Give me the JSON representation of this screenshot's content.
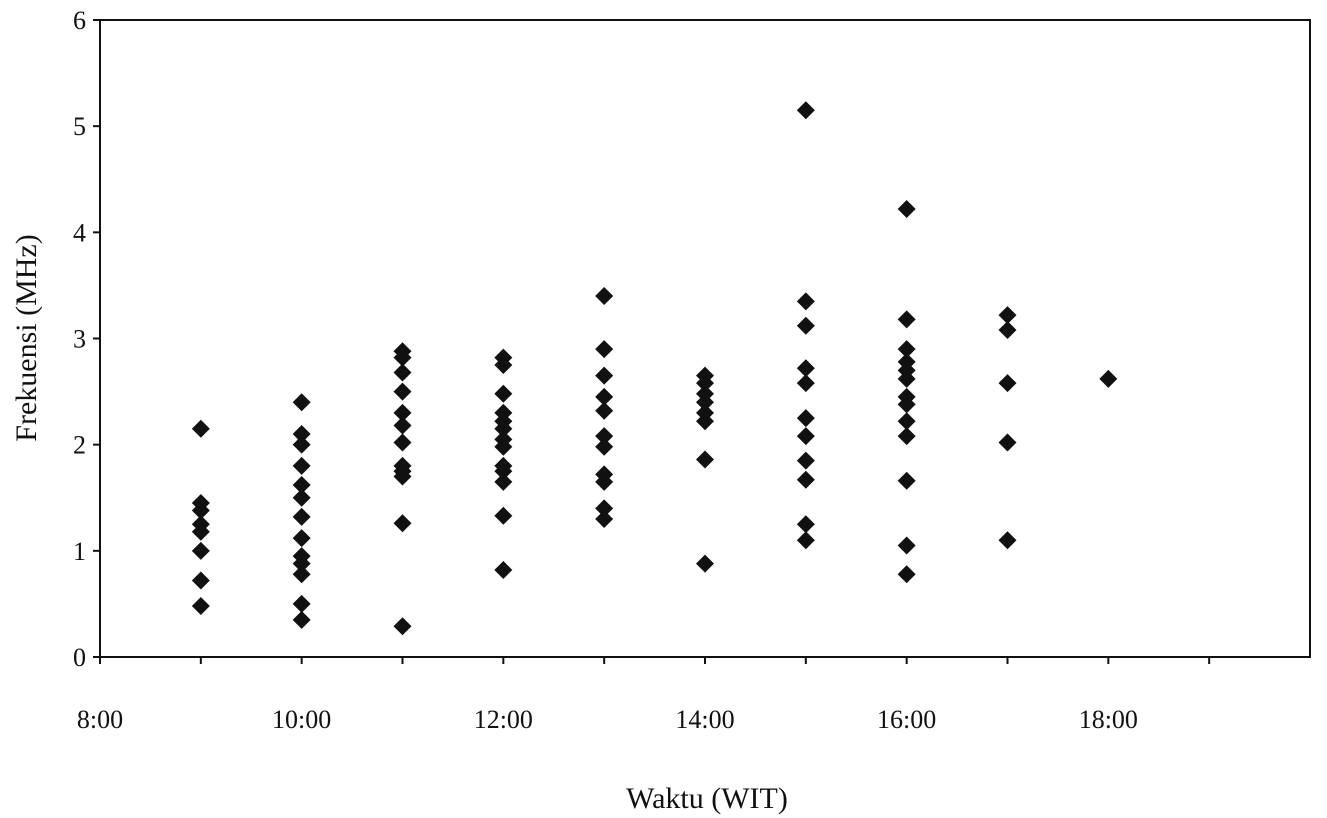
{
  "chart_data": {
    "type": "scatter",
    "title": "",
    "xlabel": "Waktu (WIT)",
    "ylabel": "Frekuensi (MHz)",
    "xlim": [
      "8:00",
      "20:00"
    ],
    "ylim": [
      0,
      6
    ],
    "x_ticks": [
      "8:00",
      "10:00",
      "12:00",
      "14:00",
      "16:00",
      "18:00"
    ],
    "y_ticks": [
      "0",
      "1",
      "2",
      "3",
      "4",
      "5",
      "6"
    ],
    "grid": false,
    "legend": "none",
    "marker": "diamond",
    "marker_color": "#111111",
    "series": [
      {
        "points": [
          [
            "9:00",
            2.15
          ],
          [
            "9:00",
            1.45
          ],
          [
            "9:00",
            1.38
          ],
          [
            "9:00",
            1.25
          ],
          [
            "9:00",
            1.18
          ],
          [
            "9:00",
            1.0
          ],
          [
            "9:00",
            0.72
          ],
          [
            "9:00",
            0.48
          ],
          [
            "10:00",
            2.4
          ],
          [
            "10:00",
            2.1
          ],
          [
            "10:00",
            2.0
          ],
          [
            "10:00",
            1.8
          ],
          [
            "10:00",
            1.62
          ],
          [
            "10:00",
            1.5
          ],
          [
            "10:00",
            1.32
          ],
          [
            "10:00",
            1.12
          ],
          [
            "10:00",
            0.95
          ],
          [
            "10:00",
            0.88
          ],
          [
            "10:00",
            0.78
          ],
          [
            "10:00",
            0.5
          ],
          [
            "10:00",
            0.35
          ],
          [
            "11:00",
            2.88
          ],
          [
            "11:00",
            2.82
          ],
          [
            "11:00",
            2.68
          ],
          [
            "11:00",
            2.5
          ],
          [
            "11:00",
            2.3
          ],
          [
            "11:00",
            2.18
          ],
          [
            "11:00",
            2.02
          ],
          [
            "11:00",
            1.8
          ],
          [
            "11:00",
            1.75
          ],
          [
            "11:00",
            1.7
          ],
          [
            "11:00",
            1.26
          ],
          [
            "11:00",
            0.29
          ],
          [
            "12:00",
            2.82
          ],
          [
            "12:00",
            2.75
          ],
          [
            "12:00",
            2.48
          ],
          [
            "12:00",
            2.3
          ],
          [
            "12:00",
            2.22
          ],
          [
            "12:00",
            2.15
          ],
          [
            "12:00",
            2.05
          ],
          [
            "12:00",
            1.98
          ],
          [
            "12:00",
            1.8
          ],
          [
            "12:00",
            1.75
          ],
          [
            "12:00",
            1.65
          ],
          [
            "12:00",
            1.33
          ],
          [
            "12:00",
            0.82
          ],
          [
            "13:00",
            3.4
          ],
          [
            "13:00",
            2.9
          ],
          [
            "13:00",
            2.65
          ],
          [
            "13:00",
            2.45
          ],
          [
            "13:00",
            2.32
          ],
          [
            "13:00",
            2.08
          ],
          [
            "13:00",
            1.98
          ],
          [
            "13:00",
            1.72
          ],
          [
            "13:00",
            1.65
          ],
          [
            "13:00",
            1.4
          ],
          [
            "13:00",
            1.3
          ],
          [
            "14:00",
            2.65
          ],
          [
            "14:00",
            2.58
          ],
          [
            "14:00",
            2.48
          ],
          [
            "14:00",
            2.4
          ],
          [
            "14:00",
            2.3
          ],
          [
            "14:00",
            2.22
          ],
          [
            "14:00",
            1.86
          ],
          [
            "14:00",
            0.88
          ],
          [
            "15:00",
            5.15
          ],
          [
            "15:00",
            3.35
          ],
          [
            "15:00",
            3.12
          ],
          [
            "15:00",
            2.72
          ],
          [
            "15:00",
            2.58
          ],
          [
            "15:00",
            2.25
          ],
          [
            "15:00",
            2.08
          ],
          [
            "15:00",
            1.85
          ],
          [
            "15:00",
            1.67
          ],
          [
            "15:00",
            1.25
          ],
          [
            "15:00",
            1.1
          ],
          [
            "16:00",
            4.22
          ],
          [
            "16:00",
            3.18
          ],
          [
            "16:00",
            2.9
          ],
          [
            "16:00",
            2.78
          ],
          [
            "16:00",
            2.7
          ],
          [
            "16:00",
            2.62
          ],
          [
            "16:00",
            2.45
          ],
          [
            "16:00",
            2.38
          ],
          [
            "16:00",
            2.22
          ],
          [
            "16:00",
            2.08
          ],
          [
            "16:00",
            1.66
          ],
          [
            "16:00",
            1.05
          ],
          [
            "16:00",
            0.78
          ],
          [
            "17:00",
            3.22
          ],
          [
            "17:00",
            3.08
          ],
          [
            "17:00",
            2.58
          ],
          [
            "17:00",
            2.02
          ],
          [
            "17:00",
            1.1
          ],
          [
            "18:00",
            2.62
          ]
        ]
      }
    ]
  }
}
